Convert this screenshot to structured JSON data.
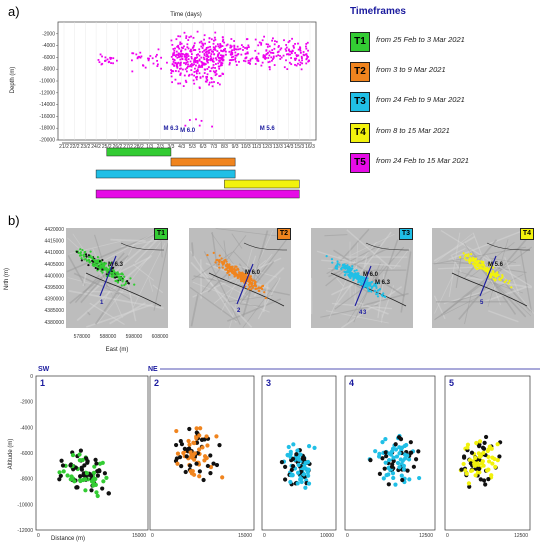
{
  "panel_labels": {
    "a": "a)",
    "b": "b)"
  },
  "timeframes": {
    "title": "Timeframes",
    "items": [
      {
        "label": "T1",
        "text": "from 25 Feb to 3 Mar 2021",
        "color": "#33cc33"
      },
      {
        "label": "T2",
        "text": "from 3 to 9 Mar 2021",
        "color": "#f0841e"
      },
      {
        "label": "T3",
        "text": "from 24 Feb to 9 Mar 2021",
        "color": "#20bfe6"
      },
      {
        "label": "T4",
        "text": "from 8 to 15 Mar 2021",
        "color": "#f2f20d"
      },
      {
        "label": "T5",
        "text": "from 24 Feb to 15 Mar 2021",
        "color": "#e60be6"
      }
    ]
  },
  "chart_data": [
    {
      "type": "scatter",
      "title": "Time (days)",
      "xlabel": "",
      "ylabel": "Depth (m)",
      "x_ticks": [
        "21/2",
        "22/2",
        "23/2",
        "24/2",
        "25/2",
        "26/2",
        "27/2",
        "28/2",
        "1/3",
        "2/3",
        "3/3",
        "4/3",
        "5/3",
        "6/3",
        "7/3",
        "8/3",
        "9/3",
        "10/3",
        "11/3",
        "12/3",
        "13/3",
        "14/3",
        "15/3",
        "16/3"
      ],
      "y_ticks": [
        "-2000",
        "-4000",
        "-6000",
        "-8000",
        "-10000",
        "-12000",
        "-14000",
        "-16000",
        "-18000",
        "-20000"
      ],
      "ylim": [
        -20000,
        0
      ],
      "color": "#ee00ee",
      "annotations": [
        {
          "text": "M 6.3",
          "x": "3/3"
        },
        {
          "text": "M 6.0",
          "x": "4/3"
        },
        {
          "text": "M 5.6",
          "x": "12/3"
        }
      ],
      "clusters": [
        {
          "x_range": [
            "24/2",
            "26/2"
          ],
          "depth_range": [
            -8000,
            -5000
          ],
          "approx_count": 20
        },
        {
          "x_range": [
            "27/2",
            "3/3"
          ],
          "depth_range": [
            -9000,
            -4000
          ],
          "approx_count": 30
        },
        {
          "x_range": [
            "3/3",
            "8/3"
          ],
          "depth_range": [
            -12000,
            -500
          ],
          "approx_count": 380
        },
        {
          "x_range": [
            "4/3",
            "7/3"
          ],
          "depth_range": [
            -19000,
            -15000
          ],
          "approx_count": 6
        },
        {
          "x_range": [
            "8/3",
            "16/3"
          ],
          "depth_range": [
            -9000,
            -2000
          ],
          "approx_count": 220
        }
      ],
      "timeframe_bars": [
        {
          "label": "T1",
          "from": "25/2",
          "to": "3/3",
          "color": "#33cc33"
        },
        {
          "label": "T2",
          "from": "3/3",
          "to": "9/3",
          "color": "#f0841e"
        },
        {
          "label": "T3",
          "from": "24/2",
          "to": "9/3",
          "color": "#20bfe6"
        },
        {
          "label": "T4",
          "from": "8/3",
          "to": "15/3",
          "color": "#f2f20d"
        },
        {
          "label": "T5",
          "from": "24/2",
          "to": "15/3",
          "color": "#e60be6"
        }
      ]
    },
    {
      "type": "scatter",
      "title": "Epicentre maps",
      "xlabel": "East (m)",
      "ylabel": "Nrth (m)",
      "x_ticks": [
        "578000",
        "588000",
        "598000",
        "608000"
      ],
      "y_ticks": [
        "4420000",
        "4415000",
        "4410000",
        "4405000",
        "4400000",
        "4395000",
        "4390000",
        "4385000",
        "4380000"
      ],
      "maps": [
        {
          "badge": "T1",
          "colors": [
            "#111111",
            "#33cc33"
          ],
          "labels": [
            "M 6.3",
            "1"
          ]
        },
        {
          "badge": "T2",
          "colors": [
            "#f0841e"
          ],
          "labels": [
            "M 6.0",
            "2"
          ]
        },
        {
          "badge": "T3",
          "colors": [
            "#20bfe6"
          ],
          "labels": [
            "M 6.0",
            "M 6.3",
            "4",
            "3"
          ]
        },
        {
          "badge": "T4",
          "colors": [
            "#f2f20d"
          ],
          "labels": [
            "M 5.6",
            "5"
          ]
        }
      ]
    },
    {
      "type": "scatter",
      "xlabel": "Distance (m)",
      "ylabel": "Altitude (m)",
      "direction_labels": {
        "left": "SW",
        "right": "NE"
      },
      "y_ticks": [
        "0",
        "-2000",
        "-4000",
        "-6000",
        "-8000",
        "-10000",
        "-12000"
      ],
      "ylim": [
        -12000,
        0
      ],
      "sections": [
        {
          "label": "1",
          "xlim": [
            0,
            15000
          ],
          "x_ticks": [
            "0",
            "15000"
          ],
          "colors": [
            "#111111",
            "#33cc33"
          ],
          "x_center": 6500,
          "depth_center": -7500
        },
        {
          "label": "2",
          "xlim": [
            0,
            15000
          ],
          "x_ticks": [
            "0",
            "15000"
          ],
          "colors": [
            "#111111",
            "#f0841e"
          ],
          "x_center": 6500,
          "depth_center": -6000
        },
        {
          "label": "3",
          "xlim": [
            0,
            10000
          ],
          "x_ticks": [
            "0",
            "10000"
          ],
          "colors": [
            "#111111",
            "#20bfe6"
          ],
          "x_center": 5000,
          "depth_center": -7000
        },
        {
          "label": "4",
          "xlim": [
            0,
            12500
          ],
          "x_ticks": [
            "0",
            "12500"
          ],
          "colors": [
            "#111111",
            "#20bfe6"
          ],
          "x_center": 7000,
          "depth_center": -6500
        },
        {
          "label": "5",
          "xlim": [
            0,
            12500
          ],
          "x_ticks": [
            "0",
            "12500"
          ],
          "colors": [
            "#111111",
            "#f2f20d"
          ],
          "x_center": 5000,
          "depth_center": -6500
        }
      ]
    }
  ]
}
